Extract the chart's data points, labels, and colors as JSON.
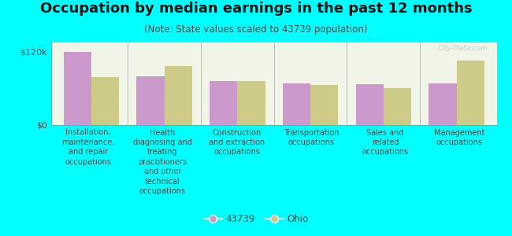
{
  "title": "Occupation by median earnings in the past 12 months",
  "subtitle": "(Note: State values scaled to 43739 population)",
  "categories": [
    "Installation,\nmaintenance,\nand repair\noccupations",
    "Health\ndiagnosing and\ntreating\npractitioners\nand other\ntechnical\noccupations",
    "Construction\nand extraction\noccupations",
    "Transportation\noccupations",
    "Sales and\nrelated\noccupations",
    "Management\noccupations"
  ],
  "values_43739": [
    120000,
    80000,
    72000,
    68000,
    67000,
    68000
  ],
  "values_ohio": [
    78000,
    96000,
    72000,
    66000,
    60000,
    105000
  ],
  "color_43739": "#cc99cc",
  "color_ohio": "#cccc88",
  "ylim": [
    0,
    135000
  ],
  "ytick_vals": [
    0,
    120000
  ],
  "ytick_labels": [
    "$0",
    "$120k"
  ],
  "legend_43739": "43739",
  "legend_ohio": "Ohio",
  "background_color": "#f0f5e8",
  "outer_background": "#00ffff",
  "watermark": "City-Data.com",
  "bar_width": 0.38,
  "title_fontsize": 13,
  "subtitle_fontsize": 8.5,
  "label_fontsize": 7,
  "ytick_fontsize": 8,
  "legend_fontsize": 8.5
}
